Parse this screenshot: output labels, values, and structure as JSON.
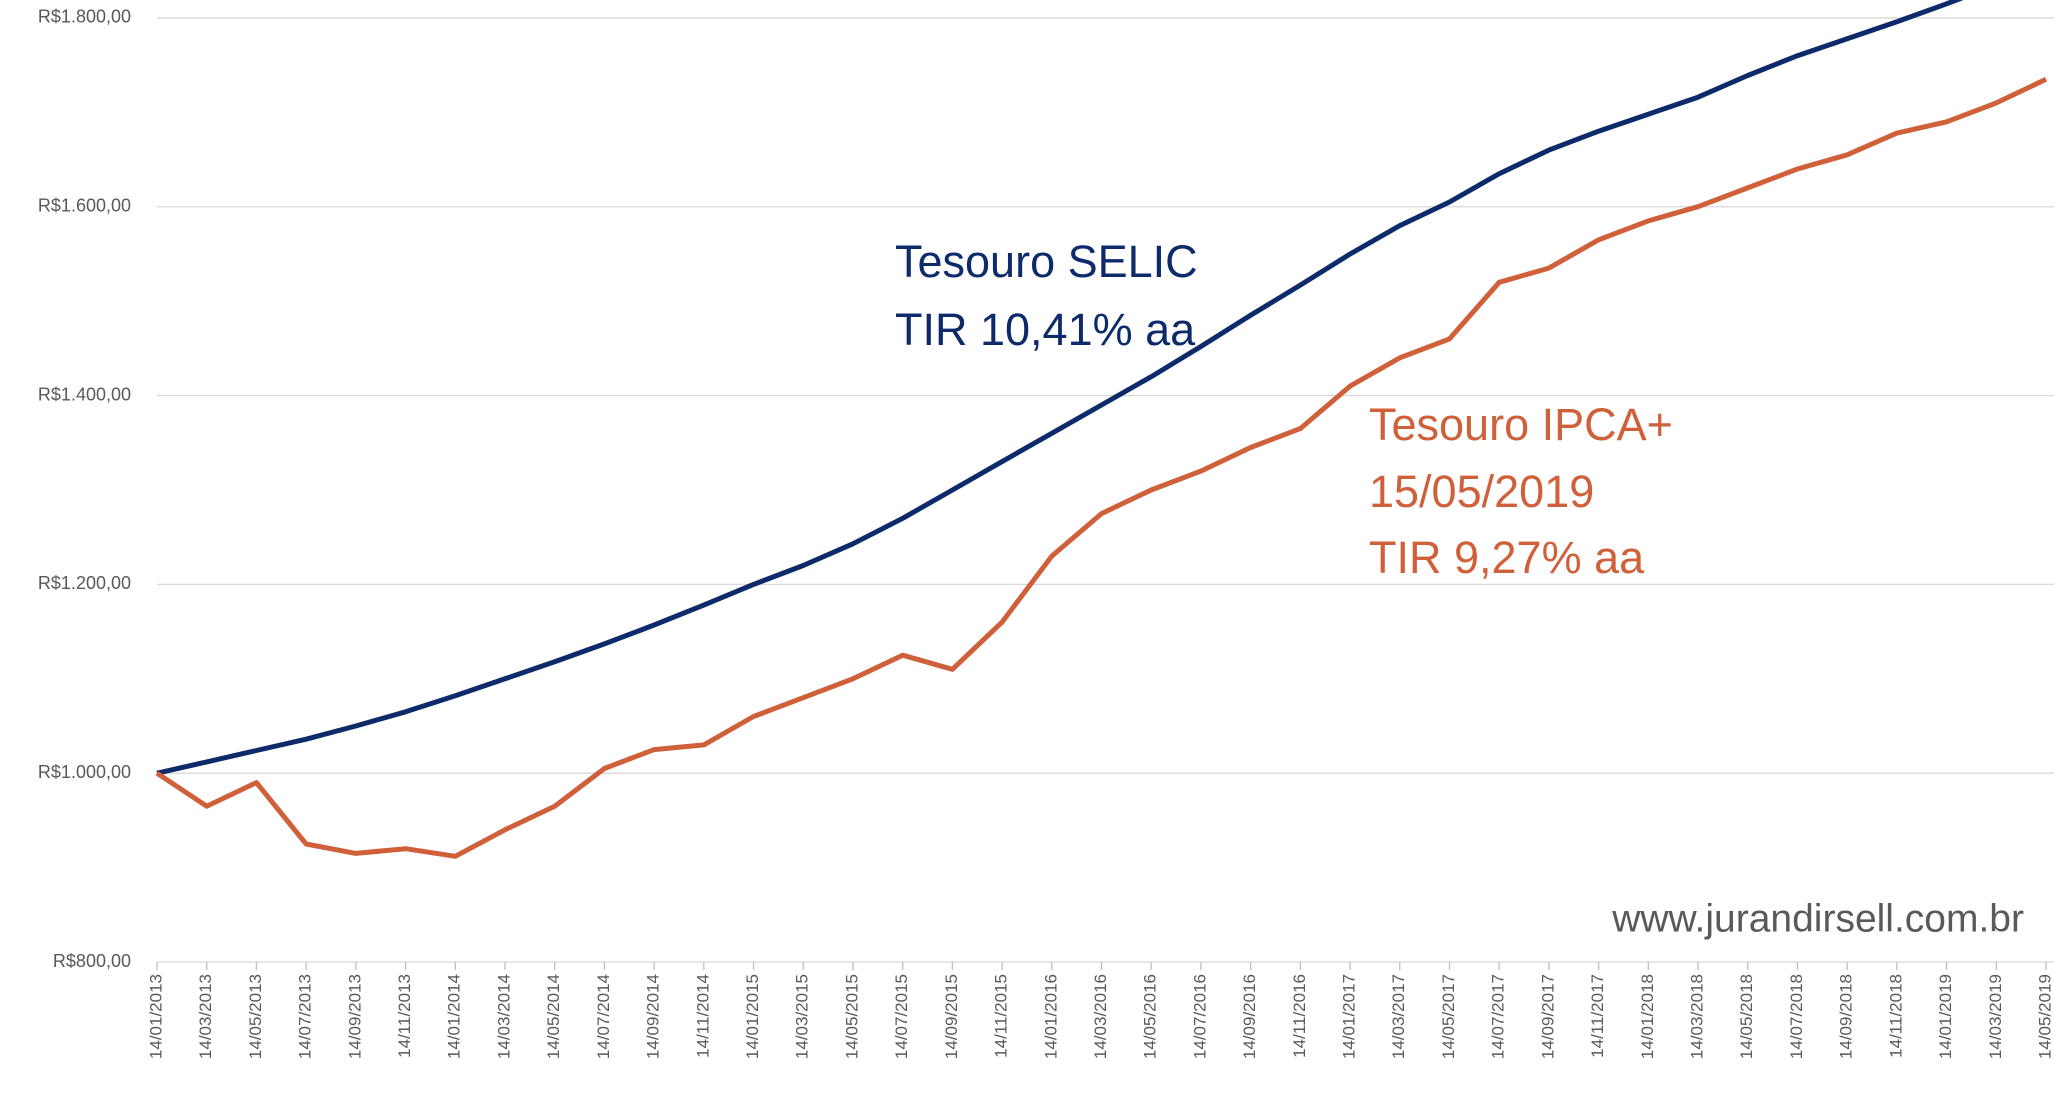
{
  "chart_data": {
    "type": "line",
    "categories": [
      "14/01/2013",
      "14/03/2013",
      "14/05/2013",
      "14/07/2013",
      "14/09/2013",
      "14/11/2013",
      "14/01/2014",
      "14/03/2014",
      "14/05/2014",
      "14/07/2014",
      "14/09/2014",
      "14/11/2014",
      "14/01/2015",
      "14/03/2015",
      "14/05/2015",
      "14/07/2015",
      "14/09/2015",
      "14/11/2015",
      "14/01/2016",
      "14/03/2016",
      "14/05/2016",
      "14/07/2016",
      "14/09/2016",
      "14/11/2016",
      "14/01/2017",
      "14/03/2017",
      "14/05/2017",
      "14/07/2017",
      "14/09/2017",
      "14/11/2017",
      "14/01/2018",
      "14/03/2018",
      "14/05/2018",
      "14/07/2018",
      "14/09/2018",
      "14/11/2018",
      "14/01/2019",
      "14/03/2019",
      "14/05/2019"
    ],
    "series": [
      {
        "color": "#0d2a6b",
        "values": [
          1000,
          1012,
          1024,
          1036,
          1050,
          1065,
          1082,
          1100,
          1118,
          1137,
          1157,
          1178,
          1200,
          1220,
          1243,
          1270,
          1300,
          1330,
          1360,
          1390,
          1420,
          1452,
          1485,
          1517,
          1550,
          1580,
          1605,
          1635,
          1660,
          1680,
          1698,
          1716,
          1739,
          1760,
          1778,
          1796,
          1815,
          1835,
          1855
        ]
      },
      {
        "color": "#d0603a",
        "values": [
          1000,
          965,
          990,
          925,
          915,
          920,
          912,
          940,
          965,
          1005,
          1025,
          1030,
          1060,
          1080,
          1100,
          1125,
          1110,
          1160,
          1230,
          1275,
          1300,
          1320,
          1345,
          1365,
          1410,
          1440,
          1460,
          1520,
          1535,
          1565,
          1585,
          1600,
          1620,
          1640,
          1655,
          1678,
          1690,
          1710,
          1735
        ]
      }
    ],
    "ylim": [
      800,
      1819
    ],
    "yticks": [
      {
        "value": 800,
        "label": "R$800,00"
      },
      {
        "value": 1000,
        "label": "R$1.000,00"
      },
      {
        "value": 1200,
        "label": "R$1.200,00"
      },
      {
        "value": 1400,
        "label": "R$1.400,00"
      },
      {
        "value": 1600,
        "label": "R$1.600,00"
      },
      {
        "value": 1800,
        "label": "R$1.800,00"
      }
    ],
    "grid": true,
    "annotations": [
      "Tesouro SELIC",
      "TIR 10,41% aa",
      "Tesouro IPCA+",
      "15/05/2019",
      "TIR 9,27% aa",
      "www.jurandirsell.com.br"
    ]
  }
}
